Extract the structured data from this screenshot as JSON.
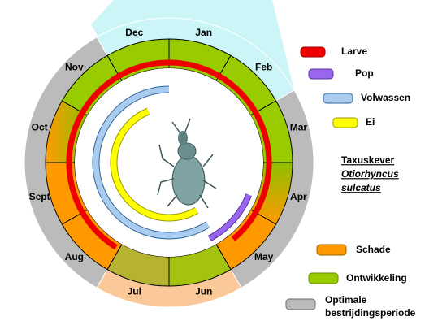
{
  "months": [
    "Jan",
    "Feb",
    "Mar",
    "Apr",
    "May",
    "Jun",
    "Jul",
    "Aug",
    "Sept",
    "Oct",
    "Nov",
    "Dec"
  ],
  "legend": {
    "stages": [
      "Larve",
      "Pop",
      "Volwassen",
      "Ei"
    ],
    "periods": [
      "Schade",
      "Ontwikkeling",
      "Optimale bestrijdingsperiode"
    ]
  },
  "species": {
    "common_name": "Taxuskever",
    "genus": "Otiorhyncus",
    "epithet": "sulcatus"
  }
}
